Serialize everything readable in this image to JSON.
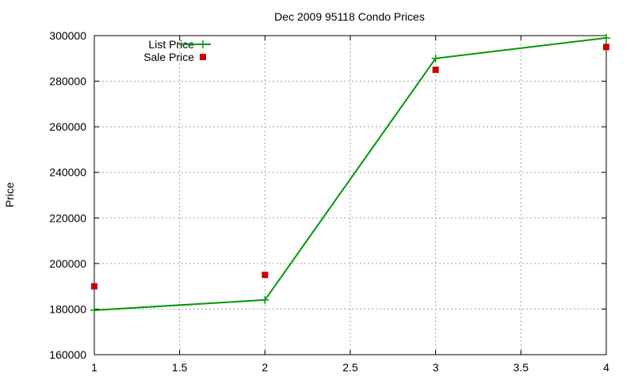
{
  "chart_data": {
    "type": "line",
    "title": "Dec 2009 95118 Condo Prices",
    "xlabel": "",
    "ylabel": "Price",
    "xlim": [
      1,
      4
    ],
    "ylim": [
      160000,
      300000
    ],
    "xticks": [
      1,
      1.5,
      2,
      2.5,
      3,
      3.5,
      4
    ],
    "xtick_labels": [
      "1",
      "1.5",
      "2",
      "2.5",
      "3",
      "3.5",
      "4"
    ],
    "yticks": [
      160000,
      180000,
      200000,
      220000,
      240000,
      260000,
      280000,
      300000
    ],
    "ytick_labels": [
      "160000",
      "180000",
      "200000",
      "220000",
      "240000",
      "260000",
      "280000",
      "300000"
    ],
    "grid": true,
    "legend_position": "top-left",
    "series": [
      {
        "name": "List Price",
        "style": "lines+points",
        "marker": "plus",
        "color": "#009900",
        "x": [
          1,
          2,
          3,
          4
        ],
        "y": [
          179500,
          184000,
          290000,
          299000
        ]
      },
      {
        "name": "Sale Price",
        "style": "points",
        "marker": "square",
        "color": "#cc0000",
        "x": [
          1,
          2,
          3,
          4
        ],
        "y": [
          190000,
          195000,
          285000,
          295000
        ]
      }
    ]
  }
}
